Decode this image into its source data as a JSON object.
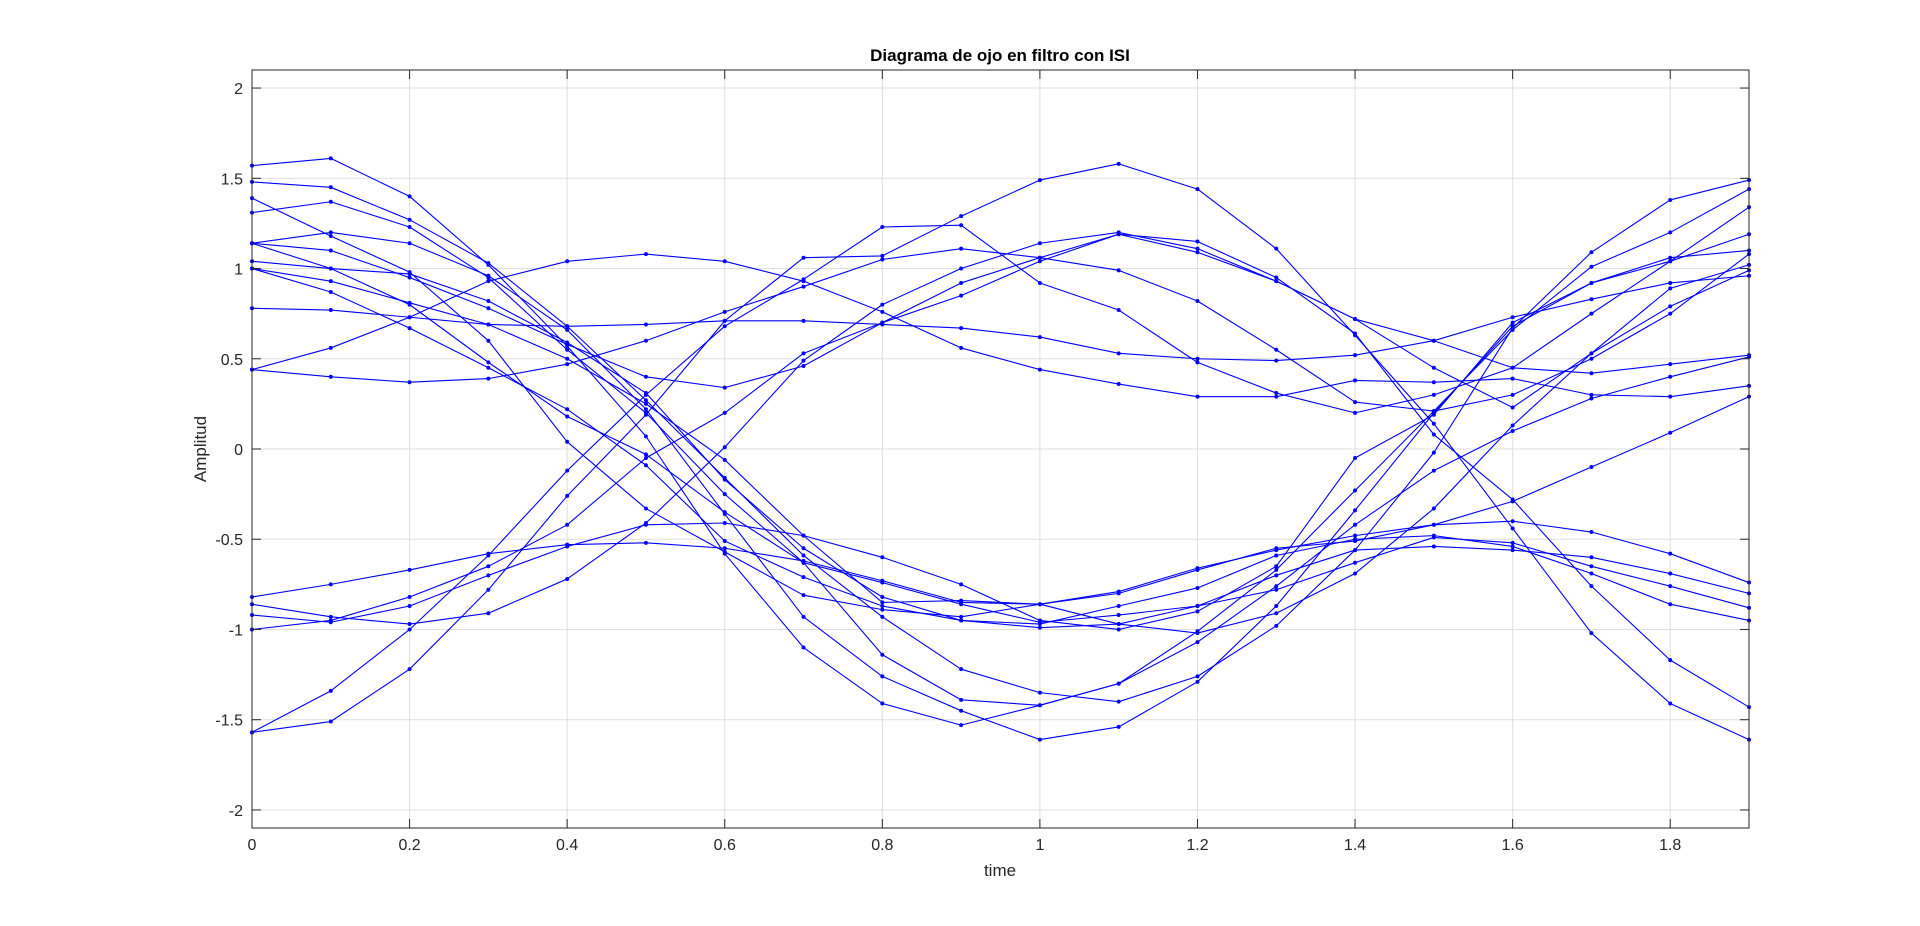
{
  "chart_data": {
    "type": "line",
    "title": "Diagrama de ojo en filtro con ISI",
    "xlabel": "time",
    "ylabel": "Amplitud",
    "xlim": [
      0,
      1.9
    ],
    "ylim": [
      -2.1,
      2.1
    ],
    "xticks": [
      0,
      0.2,
      0.4,
      0.6,
      0.8,
      1,
      1.2,
      1.4,
      1.6,
      1.8
    ],
    "xtick_labels": [
      "0",
      "0.2",
      "0.4",
      "0.6",
      "0.8",
      "1",
      "1.2",
      "1.4",
      "1.6",
      "1.8"
    ],
    "yticks": [
      -2,
      -1.5,
      -1,
      -0.5,
      0,
      0.5,
      1,
      1.5,
      2
    ],
    "ytick_labels": [
      "-2",
      "-1.5",
      "-1",
      "-0.5",
      "0",
      "0.5",
      "1",
      "1.5",
      "2"
    ],
    "grid": true,
    "box": true,
    "marker": "point",
    "line_color": "#0000ff",
    "x": [
      0,
      0.1,
      0.2,
      0.3,
      0.4,
      0.5,
      0.6,
      0.7,
      0.8,
      0.9,
      1.0,
      1.1,
      1.2,
      1.3,
      1.4,
      1.5,
      1.6,
      1.7,
      1.8,
      1.9
    ],
    "series": [
      {
        "values": [
          1.57,
          1.61,
          1.4,
          1.02,
          0.57,
          0.07,
          -0.58,
          -1.1,
          -1.41,
          -1.53,
          -1.42,
          -1.3,
          -1.07,
          -0.76,
          -0.42,
          -0.12,
          0.1,
          0.28,
          0.4,
          0.51
        ]
      },
      {
        "values": [
          1.48,
          1.45,
          1.27,
          1.03,
          0.68,
          0.27,
          -0.16,
          -0.59,
          -0.93,
          -1.22,
          -1.35,
          -1.4,
          -1.26,
          -0.98,
          -0.56,
          -0.02,
          0.67,
          1.09,
          1.38,
          1.49
        ]
      },
      {
        "values": [
          1.39,
          1.18,
          0.98,
          0.6,
          0.04,
          -0.33,
          -0.57,
          -0.81,
          -0.89,
          -0.93,
          -0.86,
          -0.79,
          -0.66,
          -0.56,
          -0.48,
          -0.42,
          -0.4,
          -0.46,
          -0.58,
          -0.74
        ]
      },
      {
        "values": [
          1.31,
          1.37,
          1.23,
          0.95,
          0.55,
          0.2,
          -0.25,
          -0.63,
          -1.14,
          -1.39,
          -1.42,
          -1.3,
          -1.01,
          -0.67,
          -0.23,
          0.21,
          0.66,
          1.01,
          1.2,
          1.44
        ]
      },
      {
        "values": [
          1.14,
          1.2,
          1.14,
          0.96,
          0.66,
          0.22,
          -0.36,
          -0.93,
          -1.26,
          -1.45,
          -1.61,
          -1.54,
          -1.29,
          -0.87,
          -0.34,
          0.2,
          0.68,
          0.92,
          1.04,
          1.19
        ]
      },
      {
        "values": [
          1.14,
          1.0,
          0.8,
          0.48,
          0.18,
          -0.03,
          -0.35,
          -0.63,
          -0.74,
          -0.86,
          -0.96,
          -0.92,
          -0.87,
          -0.78,
          -0.63,
          -0.49,
          -0.52,
          -0.65,
          -0.76,
          -0.88
        ]
      },
      {
        "values": [
          1.14,
          1.1,
          0.95,
          0.78,
          0.58,
          0.4,
          0.34,
          0.46,
          0.7,
          0.92,
          1.06,
          1.19,
          1.15,
          0.95,
          0.64,
          0.08,
          -0.28,
          -0.76,
          -1.17,
          -1.43
        ]
      },
      {
        "values": [
          1.04,
          1.0,
          0.97,
          0.82,
          0.59,
          0.31,
          -0.17,
          -0.55,
          -0.82,
          -0.95,
          -0.97,
          -0.87,
          -0.77,
          -0.59,
          -0.5,
          -0.48,
          -0.54,
          -0.69,
          -0.86,
          -0.95
        ]
      },
      {
        "values": [
          1.0,
          0.93,
          0.81,
          0.69,
          0.5,
          0.25,
          -0.06,
          -0.48,
          -0.85,
          -0.84,
          -0.86,
          -0.97,
          -0.87,
          -0.7,
          -0.56,
          -0.54,
          -0.56,
          -0.6,
          -0.69,
          -0.8
        ]
      },
      {
        "values": [
          1.0,
          0.87,
          0.67,
          0.45,
          0.22,
          -0.09,
          -0.51,
          -0.71,
          -0.87,
          -0.95,
          -0.99,
          -0.97,
          -1.02,
          -0.91,
          -0.69,
          -0.33,
          0.13,
          0.53,
          0.79,
          0.99
        ]
      },
      {
        "values": [
          0.78,
          0.77,
          0.73,
          0.69,
          0.68,
          0.69,
          0.71,
          0.71,
          0.69,
          0.67,
          0.62,
          0.53,
          0.5,
          0.49,
          0.52,
          0.6,
          0.73,
          0.83,
          0.92,
          0.96
        ]
      },
      {
        "values": [
          0.44,
          0.56,
          0.73,
          0.93,
          1.04,
          1.08,
          1.04,
          0.93,
          0.76,
          0.56,
          0.44,
          0.36,
          0.29,
          0.29,
          0.38,
          0.37,
          0.39,
          0.3,
          0.29,
          0.35
        ]
      },
      {
        "values": [
          0.44,
          0.4,
          0.37,
          0.39,
          0.47,
          0.6,
          0.76,
          0.9,
          1.05,
          1.11,
          1.06,
          0.99,
          0.82,
          0.55,
          0.26,
          0.21,
          0.3,
          0.5,
          0.75,
          1.08
        ]
      },
      {
        "values": [
          -0.82,
          -0.75,
          -0.67,
          -0.58,
          -0.53,
          -0.52,
          -0.55,
          -0.62,
          -0.73,
          -0.85,
          -0.86,
          -0.8,
          -0.67,
          -0.55,
          -0.51,
          -0.42,
          -0.29,
          -0.1,
          0.09,
          0.29
        ]
      },
      {
        "values": [
          -0.86,
          -0.93,
          -0.97,
          -0.91,
          -0.72,
          -0.41,
          0.01,
          0.49,
          0.8,
          1.0,
          1.14,
          1.2,
          1.11,
          0.93,
          0.72,
          0.6,
          0.45,
          0.42,
          0.47,
          0.52
        ]
      },
      {
        "values": [
          -0.92,
          -0.96,
          -0.87,
          -0.7,
          -0.54,
          -0.42,
          -0.41,
          -0.48,
          -0.6,
          -0.75,
          -0.95,
          -1.0,
          -0.9,
          -0.65,
          -0.05,
          0.19,
          0.7,
          0.92,
          1.06,
          1.1
        ]
      },
      {
        "values": [
          -1.0,
          -0.95,
          -0.82,
          -0.65,
          -0.42,
          -0.05,
          0.2,
          0.53,
          0.7,
          0.85,
          1.04,
          1.19,
          1.09,
          0.93,
          0.72,
          0.45,
          0.23,
          0.53,
          0.89,
          1.02
        ]
      },
      {
        "values": [
          -1.57,
          -1.34,
          -1.0,
          -0.59,
          -0.12,
          0.3,
          0.68,
          0.94,
          1.23,
          1.24,
          0.92,
          0.77,
          0.48,
          0.31,
          0.2,
          0.3,
          0.45,
          0.75,
          1.04,
          1.34
        ]
      },
      {
        "values": [
          -1.57,
          -1.51,
          -1.22,
          -0.78,
          -0.26,
          0.19,
          0.71,
          1.06,
          1.07,
          1.29,
          1.49,
          1.58,
          1.44,
          1.11,
          0.63,
          0.14,
          -0.44,
          -1.02,
          -1.41,
          -1.61
        ]
      }
    ]
  }
}
